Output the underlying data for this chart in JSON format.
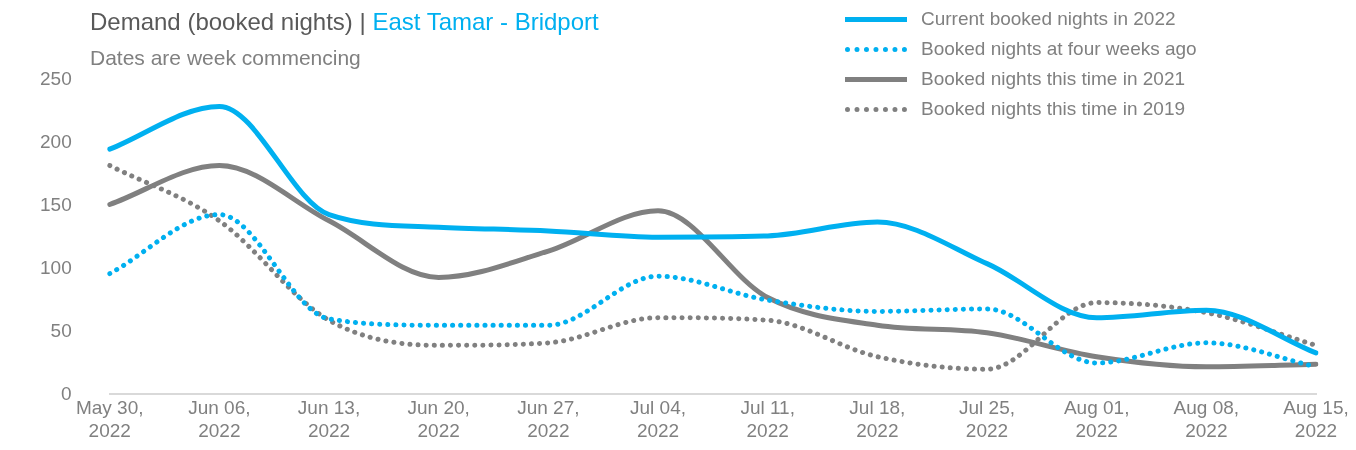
{
  "chart_data": {
    "type": "line",
    "title": "Demand (booked nights) | East Tamar - Bridport",
    "subtitle": "Dates are week commencing",
    "categories": [
      "May 30, 2022",
      "Jun 06, 2022",
      "Jun 13, 2022",
      "Jun 20, 2022",
      "Jun 27, 2022",
      "Jul 04, 2022",
      "Jul 11, 2022",
      "Jul 18, 2022",
      "Jul 25, 2022",
      "Aug 01, 2022",
      "Aug 08, 2022",
      "Aug 15, 2022"
    ],
    "series": [
      {
        "name": "Current booked nights in 2022",
        "color": "#00b0f0",
        "line_style": "solid",
        "values": [
          195,
          229,
          143,
          133,
          130,
          125,
          126,
          137,
          104,
          61,
          67,
          33
        ]
      },
      {
        "name": "Booked nights at four weeks ago",
        "color": "#00b0f0",
        "line_style": "dotted",
        "values": [
          96,
          143,
          60,
          55,
          55,
          94,
          75,
          66,
          68,
          25,
          41,
          22
        ]
      },
      {
        "name": "Booked nights this time in 2021",
        "color": "#808080",
        "line_style": "solid",
        "values": [
          151,
          182,
          138,
          93,
          114,
          146,
          77,
          55,
          49,
          30,
          22,
          24
        ]
      },
      {
        "name": "Booked nights this time in 2019",
        "color": "#808080",
        "line_style": "dotted",
        "values": [
          182,
          138,
          59,
          39,
          41,
          61,
          59,
          30,
          20,
          73,
          65,
          39
        ]
      }
    ],
    "ylim": [
      0,
      250
    ],
    "yticks": [
      0,
      50,
      100,
      150,
      200,
      250
    ],
    "grid": false,
    "legend": "top right",
    "marker": "none"
  }
}
